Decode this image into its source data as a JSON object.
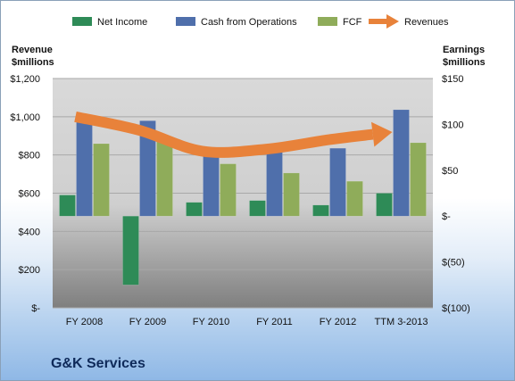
{
  "chart_data": {
    "type": "bar",
    "title": "G&K Services",
    "categories": [
      "FY 2008",
      "FY 2009",
      "FY 2010",
      "FY 2011",
      "FY 2012",
      "TTM 3-2013"
    ],
    "left_axis": {
      "label_line1": "Revenue",
      "label_line2": "$millions",
      "range": [
        0,
        1200
      ],
      "ticks": [
        "$-",
        "$200",
        "$400",
        "$600",
        "$800",
        "$1,000",
        "$1,200"
      ],
      "tick_values": [
        0,
        200,
        400,
        600,
        800,
        1000,
        1200
      ]
    },
    "right_axis": {
      "label_line1": "Earnings",
      "label_line2": "$millions",
      "range": [
        -100,
        150
      ],
      "ticks": [
        "$(100)",
        "$(50)",
        "$-",
        "$50",
        "$100",
        "$150"
      ],
      "tick_values": [
        -100,
        -50,
        0,
        50,
        100,
        150
      ]
    },
    "series": [
      {
        "name": "Net Income",
        "axis": "right",
        "kind": "bar",
        "color": "#2e8b57",
        "values": [
          23,
          -75,
          15,
          17,
          12,
          25
        ]
      },
      {
        "name": "Cash from Operations",
        "axis": "right",
        "kind": "bar",
        "color": "#4f6fab",
        "values": [
          104,
          104,
          73,
          70,
          74,
          116
        ]
      },
      {
        "name": "FCF",
        "axis": "right",
        "kind": "bar",
        "color": "#8fac5a",
        "values": [
          79,
          81,
          57,
          47,
          38,
          80
        ]
      },
      {
        "name": "Revenues",
        "axis": "left",
        "kind": "line",
        "color": "#e8823a",
        "values": [
          1000,
          930,
          820,
          830,
          880,
          920
        ]
      }
    ],
    "legend_position": "top",
    "grid": true
  }
}
